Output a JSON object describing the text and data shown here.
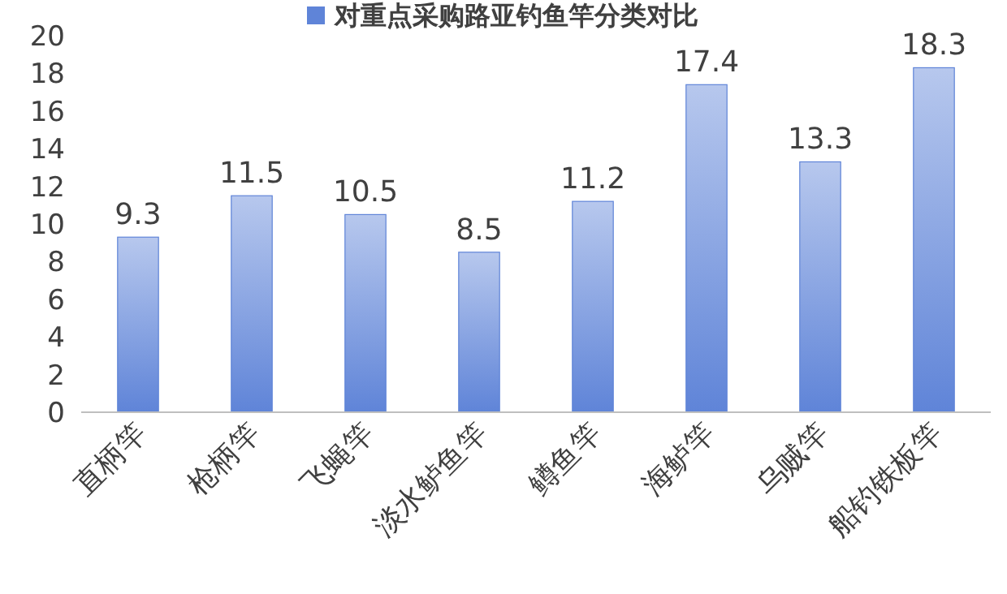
{
  "chart_data": {
    "type": "bar",
    "categories": [
      "直柄竿",
      "枪柄竿",
      "飞蝇竿",
      "淡水鲈鱼竿",
      "鳟鱼竿",
      "海鲈竿",
      "乌贼竿",
      "船钓铁板竿"
    ],
    "series": [
      {
        "name": "对重点采购路亚钓鱼竿分类对比",
        "color": "#5f84d8",
        "values": [
          9.3,
          11.5,
          10.5,
          8.5,
          11.2,
          17.4,
          13.3,
          18.3
        ]
      }
    ],
    "ylim": [
      0,
      20
    ],
    "yticks": [
      0,
      2,
      4,
      6,
      8,
      10,
      12,
      14,
      16,
      18,
      20
    ],
    "data_labels": true,
    "legend": "top",
    "grid": false
  }
}
